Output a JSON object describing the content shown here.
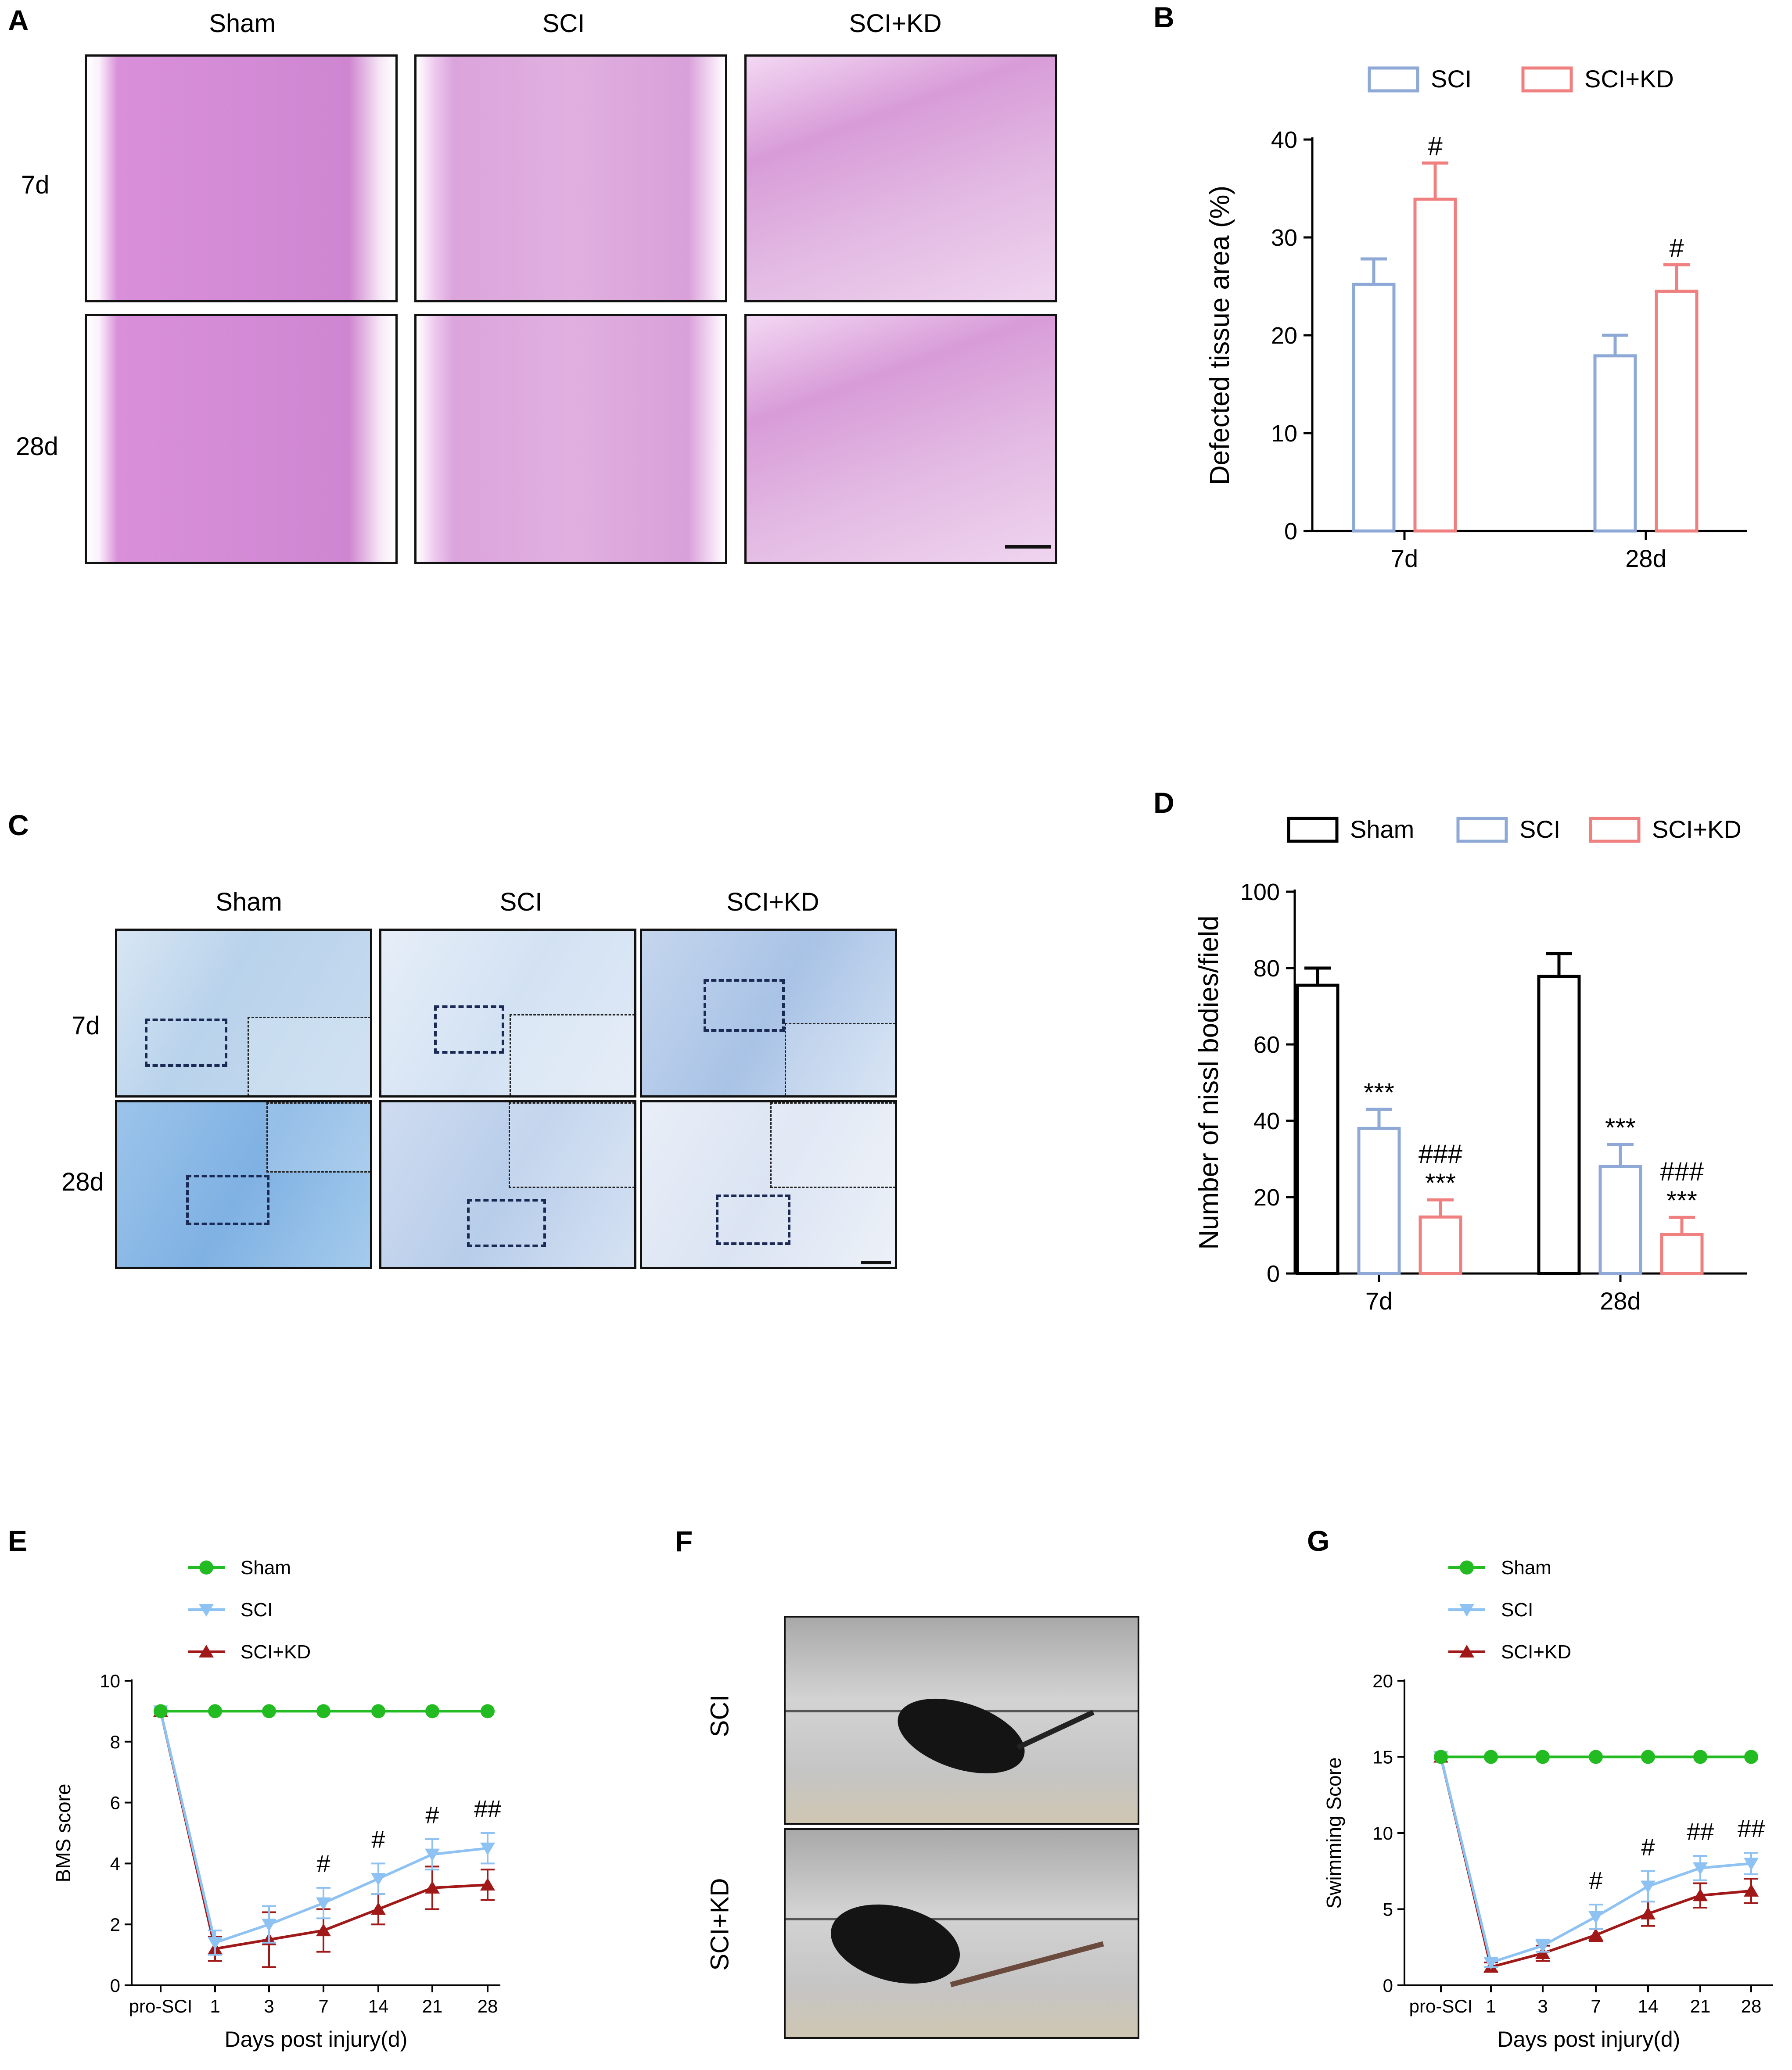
{
  "panels": {
    "A": {
      "label": "A",
      "columns": [
        "Sham",
        "SCI",
        "SCI+KD"
      ],
      "rows": [
        "7d",
        "28d"
      ]
    },
    "C": {
      "label": "C",
      "columns": [
        "Sham",
        "SCI",
        "SCI+KD"
      ],
      "rows": [
        "7d",
        "28d"
      ]
    },
    "F": {
      "label": "F",
      "rows": [
        "SCI",
        "SCI+KD"
      ]
    }
  },
  "colors": {
    "sham_bar": "#000000",
    "sci_bar": "#8fa9d6",
    "scikd_bar": "#f08080",
    "sham_line": "#22bb22",
    "sci_line": "#8ec2f2",
    "scikd_line": "#a01818"
  },
  "chart_data": [
    {
      "id": "B",
      "panel_label": "B",
      "type": "bar",
      "categories": [
        "7d",
        "28d"
      ],
      "series": [
        {
          "name": "SCI",
          "values": [
            25.2,
            17.9
          ],
          "errors": [
            2.6,
            2.1
          ],
          "annotations": [
            "",
            ""
          ]
        },
        {
          "name": "SCI+KD",
          "values": [
            33.9,
            24.5
          ],
          "errors": [
            3.7,
            2.7
          ],
          "annotations": [
            "#",
            "#"
          ]
        }
      ],
      "ylabel": "Defected tissue area (%)",
      "xlabel": "",
      "ylim": [
        0,
        40
      ],
      "yticks": [
        "0",
        "10",
        "20",
        "30",
        "40"
      ],
      "legend": [
        "SCI",
        "SCI+KD"
      ],
      "legend_position": "top"
    },
    {
      "id": "D",
      "panel_label": "D",
      "type": "bar",
      "categories": [
        "7d",
        "28d"
      ],
      "series": [
        {
          "name": "Sham",
          "values": [
            75.5,
            77.8
          ],
          "errors": [
            4.5,
            6.0
          ],
          "annotations": [
            "",
            ""
          ]
        },
        {
          "name": "SCI",
          "values": [
            38.0,
            28.0
          ],
          "errors": [
            5.0,
            5.8
          ],
          "annotations": [
            "***",
            "***"
          ]
        },
        {
          "name": "SCI+KD",
          "values": [
            14.8,
            10.2
          ],
          "errors": [
            4.5,
            4.5
          ],
          "annotations": [
            "###\n***",
            "###\n***"
          ]
        }
      ],
      "ylabel": "Number of nissl bodies/field",
      "xlabel": "",
      "ylim": [
        0,
        100
      ],
      "yticks": [
        "0",
        "20",
        "40",
        "60",
        "80",
        "100"
      ],
      "legend": [
        "Sham",
        "SCI",
        "SCI+KD"
      ],
      "legend_position": "top"
    },
    {
      "id": "E",
      "panel_label": "E",
      "type": "line",
      "categories": [
        "pro-SCI",
        "1",
        "3",
        "7",
        "14",
        "21",
        "28"
      ],
      "series": [
        {
          "name": "Sham",
          "values": [
            9,
            9,
            9,
            9,
            9,
            9,
            9
          ],
          "errors": [
            0,
            0,
            0,
            0,
            0,
            0,
            0
          ]
        },
        {
          "name": "SCI",
          "values": [
            9,
            1.4,
            2.0,
            2.7,
            3.5,
            4.3,
            4.5
          ],
          "errors": [
            0,
            0.4,
            0.6,
            0.5,
            0.5,
            0.5,
            0.5
          ]
        },
        {
          "name": "SCI+KD",
          "values": [
            9,
            1.2,
            1.5,
            1.8,
            2.5,
            3.2,
            3.3
          ],
          "errors": [
            0,
            0.4,
            0.9,
            0.7,
            0.5,
            0.7,
            0.5
          ]
        }
      ],
      "annotations": [
        "",
        "",
        "",
        "#",
        "#",
        "#",
        "##"
      ],
      "ylabel": "BMS  score",
      "xlabel": "Days post injury(d)",
      "ylim": [
        0,
        10
      ],
      "yticks": [
        "0",
        "2",
        "4",
        "6",
        "8",
        "10"
      ],
      "legend": [
        "Sham",
        "SCI",
        "SCI+KD"
      ],
      "legend_position": "top-left"
    },
    {
      "id": "G",
      "panel_label": "G",
      "type": "line",
      "categories": [
        "pro-SCI",
        "1",
        "3",
        "7",
        "14",
        "21",
        "28"
      ],
      "series": [
        {
          "name": "Sham",
          "values": [
            15,
            15,
            15,
            15,
            15,
            15,
            15
          ],
          "errors": [
            0,
            0,
            0,
            0,
            0,
            0,
            0
          ]
        },
        {
          "name": "SCI",
          "values": [
            15,
            1.5,
            2.6,
            4.5,
            6.5,
            7.7,
            8.0
          ],
          "errors": [
            0,
            0.3,
            0.4,
            0.8,
            1.0,
            0.8,
            0.7
          ]
        },
        {
          "name": "SCI+KD",
          "values": [
            15,
            1.2,
            2.1,
            3.3,
            4.7,
            5.9,
            6.2
          ],
          "errors": [
            0,
            0.3,
            0.5,
            0.4,
            0.8,
            0.8,
            0.8
          ]
        }
      ],
      "annotations": [
        "",
        "",
        "",
        "#",
        "#",
        "##",
        "##"
      ],
      "ylabel": "Swimming Score",
      "xlabel": "Days post injury(d)",
      "ylim": [
        0,
        20
      ],
      "yticks": [
        "0",
        "5",
        "10",
        "15",
        "20"
      ],
      "legend": [
        "Sham",
        "SCI",
        "SCI+KD"
      ],
      "legend_position": "top-left"
    }
  ]
}
